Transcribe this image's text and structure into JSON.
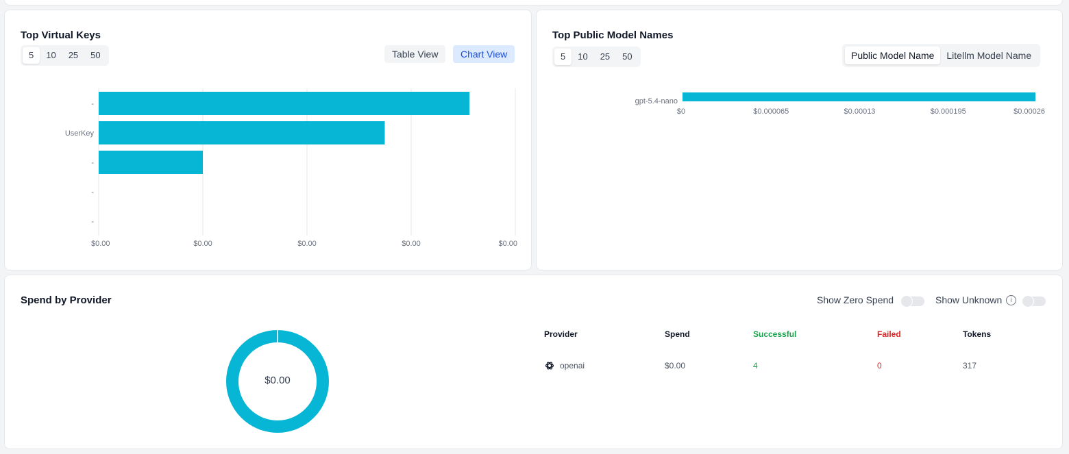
{
  "colors": {
    "bar": "#06b6d4",
    "success": "#16a34a",
    "failed": "#dc2626",
    "active_blue": "#1d4ed8"
  },
  "virtual_keys": {
    "title": "Top Virtual Keys",
    "limits": [
      "5",
      "10",
      "25",
      "50"
    ],
    "active_limit": "5",
    "table_view_label": "Table View",
    "chart_view_label": "Chart View"
  },
  "public_models": {
    "title": "Top Public Model Names",
    "limits": [
      "5",
      "10",
      "25",
      "50"
    ],
    "active_limit": "5",
    "toggle_public": "Public Model Name",
    "toggle_litellm": "Litellm Model Name"
  },
  "provider": {
    "title": "Spend by Provider",
    "show_zero_spend_label": "Show Zero Spend",
    "show_unknown_label": "Show Unknown",
    "info_icon": "i",
    "donut_total": "$0.00",
    "table": {
      "headers": [
        "Provider",
        "Spend",
        "Successful",
        "Failed",
        "Tokens"
      ],
      "rows": [
        {
          "provider": "openai",
          "icon": "openai-icon",
          "spend": "$0.00",
          "successful": "4",
          "failed": "0",
          "tokens": "317"
        }
      ]
    }
  },
  "chart_data": [
    {
      "type": "bar",
      "orientation": "horizontal",
      "title": "Top Virtual Keys",
      "categories": [
        "-",
        "UserKey",
        "-",
        "-",
        "-"
      ],
      "values": [
        5.34e-05,
        4.12e-05,
        1.5e-05,
        0,
        0
      ],
      "xlim": [
        0,
        6e-05
      ],
      "xticks": [
        "$0.00",
        "$0.00",
        "$0.00",
        "$0.00",
        "$0.00"
      ],
      "grid": true
    },
    {
      "type": "bar",
      "orientation": "horizontal",
      "title": "Top Public Model Names",
      "categories": [
        "gpt-5.4-nano"
      ],
      "values": [
        0.000259
      ],
      "xlim": [
        0,
        0.00026
      ],
      "xticks": [
        "$0",
        "$0.000065",
        "$0.00013",
        "$0.000195",
        "$0.00026"
      ],
      "grid": false
    },
    {
      "type": "pie",
      "title": "Spend by Provider",
      "labels": [
        "openai"
      ],
      "values": [
        1
      ],
      "center_label": "$0.00"
    }
  ]
}
